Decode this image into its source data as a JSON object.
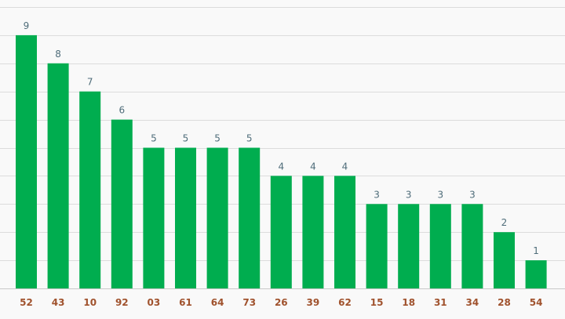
{
  "chart_data": {
    "type": "bar",
    "categories": [
      "52",
      "43",
      "10",
      "92",
      "03",
      "61",
      "64",
      "73",
      "26",
      "39",
      "62",
      "15",
      "18",
      "31",
      "34",
      "28",
      "54"
    ],
    "values": [
      9,
      8,
      7,
      6,
      5,
      5,
      5,
      5,
      4,
      4,
      4,
      3,
      3,
      3,
      3,
      2,
      1
    ],
    "title": "",
    "xlabel": "",
    "ylabel": "",
    "ylim": [
      0,
      10
    ],
    "grid": true,
    "legend": "none",
    "colors": {
      "bar": "#00ad4f",
      "value_label": "#4f6d7a",
      "category_label": "#a0522d",
      "grid": "#dcdcdc",
      "background": "#f9f9f9"
    }
  }
}
